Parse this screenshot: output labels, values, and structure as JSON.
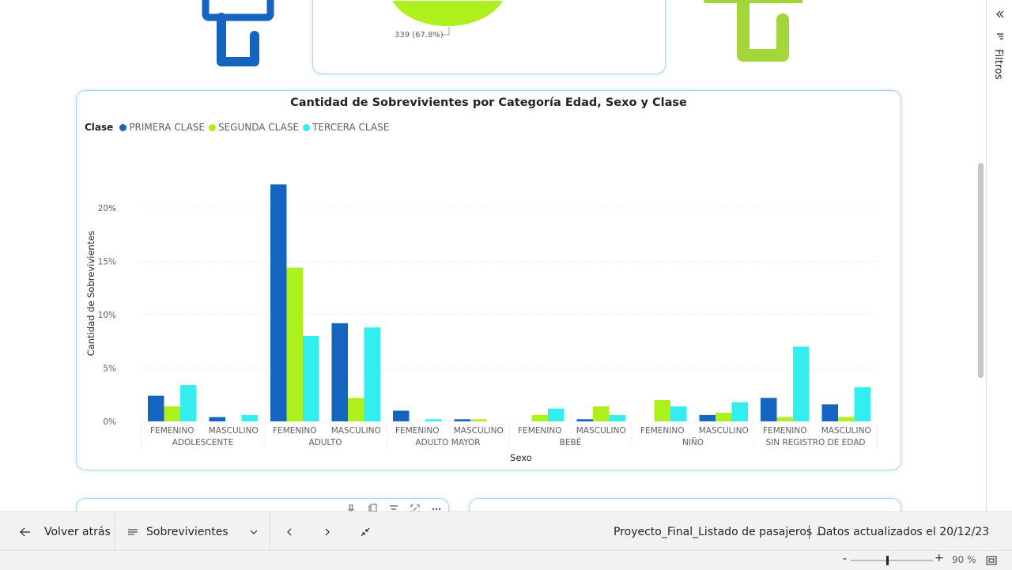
{
  "pie": {
    "label": "339 (67.8%)"
  },
  "chart": {
    "title": "Cantidad de Sobrevivientes por Categoría Edad, Sexo y Clase",
    "legend_title": "Clase"
  },
  "chart_data": {
    "type": "bar",
    "title": "Cantidad de Sobrevivientes por Categoría Edad, Sexo y Clase",
    "xlabel": "Sexo",
    "ylabel": "Cantidad de Sobrevivientes",
    "ylim": [
      0,
      0.24
    ],
    "yticks": [
      "0%",
      "5%",
      "10%",
      "15%",
      "20%"
    ],
    "legend_title": "Clase",
    "legend_position": "top-left",
    "grid": true,
    "groups": [
      "ADOLESCENTE",
      "ADULTO",
      "ADULTO MAYOR",
      "BEBÉ",
      "NIÑO",
      "SIN REGISTRO DE EDAD"
    ],
    "categories": [
      "FEMENINO",
      "MASCULINO",
      "FEMENINO",
      "MASCULINO",
      "FEMENINO",
      "MASCULINO",
      "FEMENINO",
      "MASCULINO",
      "FEMENINO",
      "MASCULINO",
      "FEMENINO",
      "MASCULINO"
    ],
    "series": [
      {
        "name": "PRIMERA CLASE",
        "color": "#1565C0",
        "values": [
          0.024,
          0.004,
          0.222,
          0.092,
          0.01,
          0.002,
          0.0,
          0.002,
          0.0,
          0.006,
          0.022,
          0.016
        ]
      },
      {
        "name": "SEGUNDA CLASE",
        "color": "#AEF01E",
        "values": [
          0.014,
          0.0,
          0.144,
          0.022,
          0.0,
          0.002,
          0.006,
          0.014,
          0.02,
          0.008,
          0.004,
          0.004
        ]
      },
      {
        "name": "TERCERA CLASE",
        "color": "#33EEEE",
        "values": [
          0.034,
          0.006,
          0.08,
          0.088,
          0.002,
          0.0,
          0.012,
          0.006,
          0.014,
          0.018,
          0.07,
          0.032
        ]
      }
    ]
  },
  "right_pane": {
    "filters_label": "Filtros"
  },
  "bottom_bar": {
    "back_label": "Volver atrás",
    "page_label": "Sobrevivientes",
    "report_title": "Proyecto_Final_Listado de pasajeros ...",
    "updated": "Datos actualizados el 20/12/23"
  },
  "status_bar": {
    "zoom": "90 %",
    "zoom_level": 0.9
  }
}
